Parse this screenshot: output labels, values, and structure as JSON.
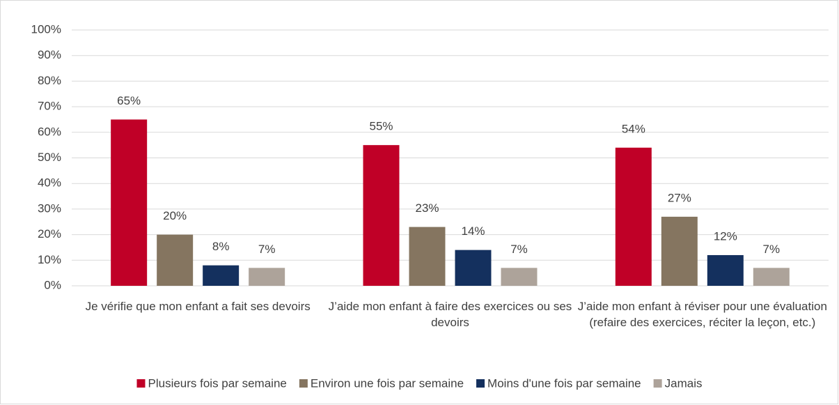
{
  "chart_data": {
    "type": "bar",
    "categories": [
      "Je vérifie que mon enfant a fait ses devoirs",
      "J’aide mon enfant à faire des exercices ou ses devoirs",
      "J’aide mon enfant à réviser pour une évaluation (refaire des exercices, réciter la leçon, etc.)"
    ],
    "series": [
      {
        "name": "Plusieurs fois par semaine",
        "color": "#c00027",
        "values": [
          65,
          55,
          54
        ],
        "value_labels": [
          "65%",
          "55%",
          "54%"
        ]
      },
      {
        "name": "Environ une fois par semaine",
        "color": "#857560",
        "values": [
          20,
          23,
          27
        ],
        "value_labels": [
          "20%",
          "23%",
          "27%"
        ]
      },
      {
        "name": "Moins d'une fois par semaine",
        "color": "#14305e",
        "values": [
          8,
          14,
          12
        ],
        "value_labels": [
          "8%",
          "14%",
          "12%"
        ]
      },
      {
        "name": "Jamais",
        "color": "#ada39a",
        "values": [
          7,
          7,
          7
        ],
        "value_labels": [
          "7%",
          "7%",
          "7%"
        ]
      }
    ],
    "ylim": [
      0,
      100
    ],
    "yticks": [
      {
        "value": 0,
        "label": "0%"
      },
      {
        "value": 10,
        "label": "10%"
      },
      {
        "value": 20,
        "label": "20%"
      },
      {
        "value": 30,
        "label": "30%"
      },
      {
        "value": 40,
        "label": "40%"
      },
      {
        "value": 50,
        "label": "50%"
      },
      {
        "value": 60,
        "label": "60%"
      },
      {
        "value": 70,
        "label": "70%"
      },
      {
        "value": 80,
        "label": "80%"
      },
      {
        "value": 90,
        "label": "90%"
      },
      {
        "value": 100,
        "label": "100%"
      }
    ],
    "grid": true,
    "legend": "bottom"
  }
}
